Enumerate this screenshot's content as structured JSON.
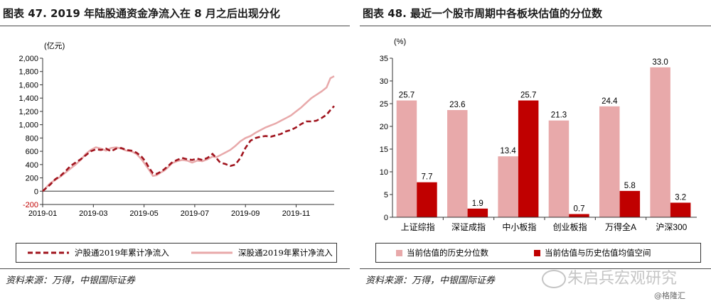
{
  "left": {
    "title": "图表 47. 2019 年陆股通资金净流入在 8 月之后出现分化",
    "source": "资料来源：万得，中银国际证券",
    "unit_label": "(亿元)",
    "legend": [
      "沪股通2019年累计净流入",
      "深股通2019年累计净流入"
    ]
  },
  "right": {
    "title": "图表 48. 最近一个股市周期中各板块估值的分位数",
    "source": "资料来源：万得，中银国际证券",
    "unit_label": "(%)",
    "legend": [
      "当前估值的历史分位数",
      "当前估值与历史估值均值空间"
    ]
  },
  "watermark": "朱启兵宏观研究",
  "credit": "@格隆汇",
  "colors": {
    "dark_red": "#a0141e",
    "light_pink": "#e8a9aa",
    "axis": "#333333"
  },
  "chart_data": [
    {
      "type": "line",
      "ylim": [
        -200,
        2000
      ],
      "yticks": [
        "-200",
        "0",
        "200",
        "400",
        "600",
        "800",
        "1,000",
        "1,200",
        "1,400",
        "1,600",
        "1,800",
        "2,000"
      ],
      "xlim": [
        0,
        11.5
      ],
      "xticks": [
        {
          "x": 0,
          "label": "2019-01"
        },
        {
          "x": 2,
          "label": "2019-03"
        },
        {
          "x": 4,
          "label": "2019-05"
        },
        {
          "x": 6,
          "label": "2019-07"
        },
        {
          "x": 8,
          "label": "2019-09"
        },
        {
          "x": 10,
          "label": "2019-11"
        }
      ],
      "series": [
        {
          "name": "沪股通2019年累计净流入",
          "style": "dashed",
          "color": "#a0141e",
          "points": [
            [
              0,
              0
            ],
            [
              0.15,
              50
            ],
            [
              0.3,
              100
            ],
            [
              0.5,
              180
            ],
            [
              0.7,
              230
            ],
            [
              0.9,
              300
            ],
            [
              1.1,
              380
            ],
            [
              1.3,
              430
            ],
            [
              1.5,
              480
            ],
            [
              1.7,
              540
            ],
            [
              1.9,
              600
            ],
            [
              2.1,
              630
            ],
            [
              2.3,
              620
            ],
            [
              2.5,
              640
            ],
            [
              2.7,
              600
            ],
            [
              2.9,
              640
            ],
            [
              3.1,
              650
            ],
            [
              3.3,
              620
            ],
            [
              3.5,
              610
            ],
            [
              3.7,
              580
            ],
            [
              3.9,
              520
            ],
            [
              4.05,
              450
            ],
            [
              4.2,
              350
            ],
            [
              4.35,
              270
            ],
            [
              4.5,
              260
            ],
            [
              4.65,
              290
            ],
            [
              4.8,
              330
            ],
            [
              4.95,
              380
            ],
            [
              5.1,
              430
            ],
            [
              5.3,
              470
            ],
            [
              5.5,
              500
            ],
            [
              5.7,
              480
            ],
            [
              5.9,
              470
            ],
            [
              6.1,
              490
            ],
            [
              6.3,
              470
            ],
            [
              6.5,
              500
            ],
            [
              6.7,
              560
            ],
            [
              6.85,
              500
            ],
            [
              7.0,
              430
            ],
            [
              7.2,
              410
            ],
            [
              7.4,
              380
            ],
            [
              7.6,
              400
            ],
            [
              7.8,
              500
            ],
            [
              8.0,
              650
            ],
            [
              8.2,
              760
            ],
            [
              8.4,
              800
            ],
            [
              8.6,
              820
            ],
            [
              8.8,
              830
            ],
            [
              9.0,
              820
            ],
            [
              9.2,
              840
            ],
            [
              9.4,
              860
            ],
            [
              9.6,
              900
            ],
            [
              9.8,
              920
            ],
            [
              10.0,
              960
            ],
            [
              10.2,
              1010
            ],
            [
              10.4,
              1050
            ],
            [
              10.6,
              1050
            ],
            [
              10.8,
              1060
            ],
            [
              11.0,
              1100
            ],
            [
              11.2,
              1150
            ],
            [
              11.35,
              1220
            ],
            [
              11.5,
              1280
            ]
          ]
        },
        {
          "name": "深股通2019年累计净流入",
          "style": "solid",
          "color": "#e8a9aa",
          "points": [
            [
              0,
              0
            ],
            [
              0.15,
              60
            ],
            [
              0.3,
              120
            ],
            [
              0.5,
              170
            ],
            [
              0.7,
              220
            ],
            [
              0.9,
              280
            ],
            [
              1.1,
              340
            ],
            [
              1.3,
              400
            ],
            [
              1.5,
              470
            ],
            [
              1.7,
              560
            ],
            [
              1.9,
              620
            ],
            [
              2.1,
              660
            ],
            [
              2.3,
              640
            ],
            [
              2.5,
              610
            ],
            [
              2.7,
              650
            ],
            [
              2.9,
              660
            ],
            [
              3.1,
              640
            ],
            [
              3.3,
              610
            ],
            [
              3.5,
              600
            ],
            [
              3.7,
              560
            ],
            [
              3.9,
              480
            ],
            [
              4.05,
              400
            ],
            [
              4.2,
              320
            ],
            [
              4.35,
              230
            ],
            [
              4.5,
              240
            ],
            [
              4.65,
              280
            ],
            [
              4.8,
              310
            ],
            [
              4.95,
              360
            ],
            [
              5.1,
              420
            ],
            [
              5.3,
              450
            ],
            [
              5.5,
              470
            ],
            [
              5.7,
              460
            ],
            [
              5.9,
              430
            ],
            [
              6.1,
              460
            ],
            [
              6.3,
              450
            ],
            [
              6.5,
              480
            ],
            [
              6.7,
              520
            ],
            [
              6.85,
              510
            ],
            [
              7.0,
              540
            ],
            [
              7.2,
              580
            ],
            [
              7.4,
              620
            ],
            [
              7.6,
              680
            ],
            [
              7.8,
              750
            ],
            [
              8.0,
              800
            ],
            [
              8.2,
              830
            ],
            [
              8.4,
              880
            ],
            [
              8.6,
              920
            ],
            [
              8.8,
              960
            ],
            [
              9.0,
              990
            ],
            [
              9.2,
              1020
            ],
            [
              9.4,
              1060
            ],
            [
              9.6,
              1100
            ],
            [
              9.8,
              1140
            ],
            [
              10.0,
              1200
            ],
            [
              10.2,
              1260
            ],
            [
              10.4,
              1330
            ],
            [
              10.6,
              1400
            ],
            [
              10.8,
              1450
            ],
            [
              11.0,
              1500
            ],
            [
              11.2,
              1560
            ],
            [
              11.35,
              1700
            ],
            [
              11.5,
              1730
            ]
          ]
        }
      ]
    },
    {
      "type": "bar",
      "ylim": [
        0,
        35
      ],
      "yticks": [
        "0",
        "5",
        "10",
        "15",
        "20",
        "25",
        "30",
        "35"
      ],
      "categories": [
        "上证综指",
        "深证成指",
        "中小板指",
        "创业板指",
        "万得全A",
        "沪深300"
      ],
      "series": [
        {
          "name": "当前估值的历史分位数",
          "color": "#e8a9aa",
          "values": [
            25.7,
            23.6,
            13.4,
            21.3,
            24.4,
            33.0
          ],
          "labels": [
            "25.7",
            "23.6",
            "13.4",
            "21.3",
            "24.4",
            "33.0"
          ]
        },
        {
          "name": "当前估值与历史估值均值空间",
          "color": "#c00000",
          "values": [
            7.7,
            1.9,
            25.7,
            0.7,
            5.8,
            3.2
          ],
          "labels": [
            "7.7",
            "1.9",
            "25.7",
            "0.7",
            "5.8",
            "3.2"
          ]
        }
      ]
    }
  ]
}
